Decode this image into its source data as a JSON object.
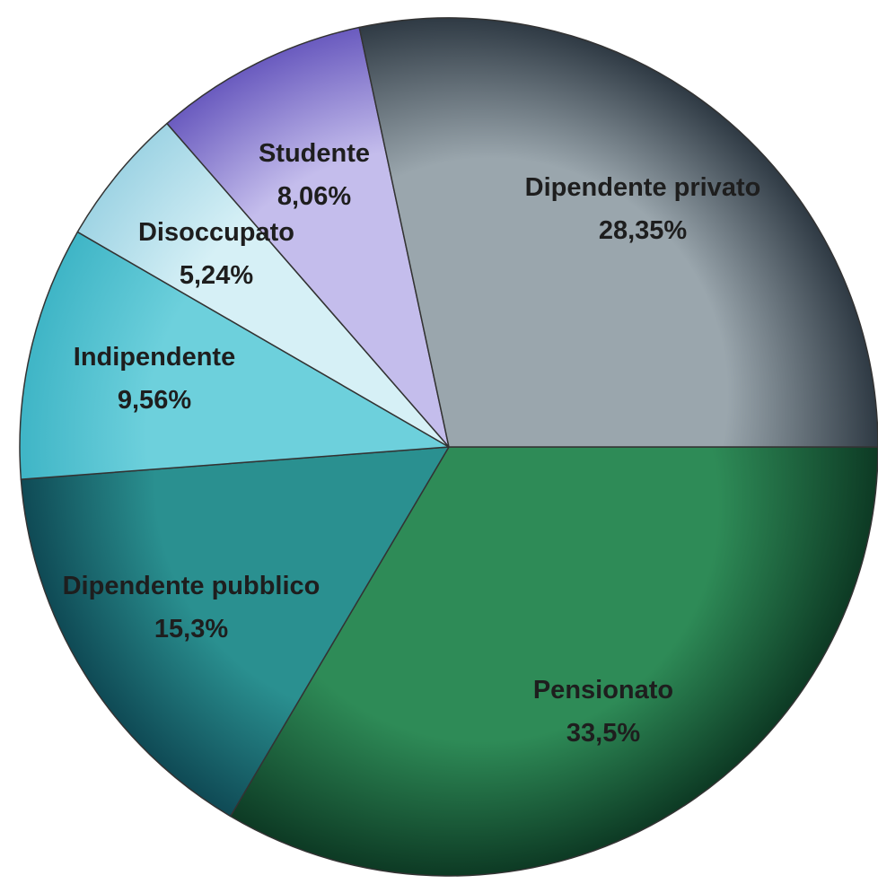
{
  "chart_data": {
    "type": "pie",
    "start_angle_deg": 0,
    "direction": "clockwise",
    "slices": [
      {
        "label": "Pensionato",
        "value_text": "33,5%",
        "value": 33.5,
        "color": "#2e8b57",
        "color_dark": "#0d3a24"
      },
      {
        "label": "Dipendente pubblico",
        "value_text": "15,3%",
        "value": 15.3,
        "color": "#2a9090",
        "color_dark": "#0f4a55"
      },
      {
        "label": "Indipendente",
        "value_text": "9,56%",
        "value": 9.56,
        "color": "#6dd0dc",
        "color_dark": "#3fb5c6"
      },
      {
        "label": "Disoccupato",
        "value_text": "5,24%",
        "value": 5.24,
        "color": "#d6f0f6",
        "color_dark": "#9fd4e4"
      },
      {
        "label": "Studente",
        "value_text": "8,06%",
        "value": 8.06,
        "color": "#c4bdec",
        "color_dark": "#6a5bbf"
      },
      {
        "label": "Dipendente privato",
        "value_text": "28,35%",
        "value": 28.35,
        "color": "#9aa6ad",
        "color_dark": "#2f3a44"
      }
    ]
  }
}
